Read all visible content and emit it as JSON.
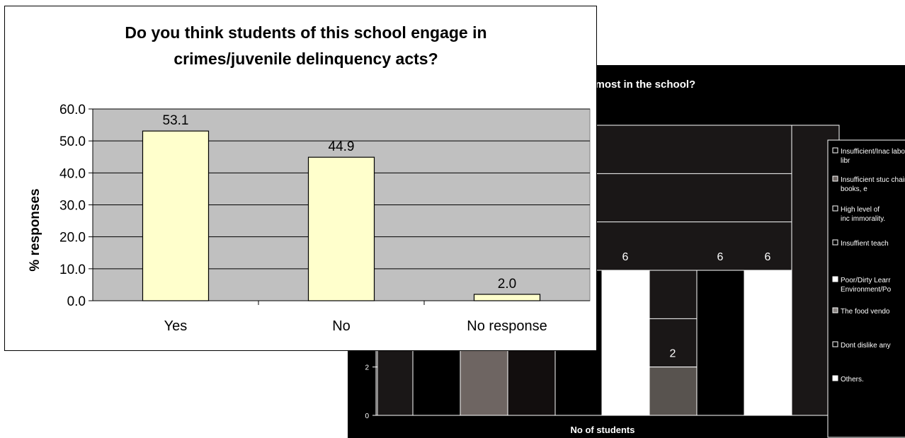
{
  "chart_data": [
    {
      "type": "bar",
      "title_line1": "Do you think students of this school engage in",
      "title_line2": "crimes/juvenile delinquency acts?",
      "xlabel": "",
      "ylabel": "% responses",
      "categories": [
        "Yes",
        "No",
        "No response"
      ],
      "values": [
        53.1,
        44.9,
        2.0
      ],
      "value_labels": [
        "53.1",
        "44.9",
        "2.0"
      ],
      "ylim": [
        0,
        60
      ],
      "yticks": [
        "0.0",
        "10.0",
        "20.0",
        "30.0",
        "40.0",
        "50.0",
        "60.0"
      ],
      "grid": true,
      "colors": {
        "bar": "#ffffcc",
        "plot_bg": "#c0c0c0",
        "bar_border": "#000000"
      }
    },
    {
      "type": "bar",
      "title_fragment": "e most in the school?",
      "xlabel": "No of students",
      "ylabel": "",
      "ylim": [
        0,
        12
      ],
      "yticks": [
        "0",
        "2"
      ],
      "grid": true,
      "series": [
        {
          "name": "Insufficient/Inac laboratories, libr",
          "value": null,
          "color": "#1a1717"
        },
        {
          "name": "Insufficient stuc chairs, books, e",
          "value": null,
          "color": "#000000"
        },
        {
          "name": "High level of inc immorality.",
          "value": null,
          "color": "#6e6562"
        },
        {
          "name": "Insuffient teach",
          "value": null,
          "color": "#120e0e"
        },
        {
          "name": "Poor/Dirty Learr Environment/Po",
          "value": 6,
          "color": "#000000"
        },
        {
          "name": "The food vendo",
          "value": 6,
          "color": "#ffffff"
        },
        {
          "name": "Dont dislike any",
          "value": 2,
          "color": "#58534f"
        },
        {
          "name": "Others.",
          "value": 6,
          "color": "#000000"
        },
        {
          "name": "",
          "value": 6,
          "color": "#ffffff"
        },
        {
          "name": "",
          "value": null,
          "color": "#1a1717"
        }
      ],
      "value_labels": [
        "6",
        "6",
        "6",
        "2"
      ],
      "legend_position": "right",
      "legend_items": [
        "Insufficient/Inac laboratories, libr",
        "Insufficient stuc chairs, books, e",
        "High level of inc immorality.",
        "Insuffient teach",
        "Poor/Dirty Learr Environment/Po",
        "The food vendo",
        "Dont dislike any",
        "Others."
      ],
      "colors": {
        "bg": "#000000",
        "text": "#ffffff"
      }
    }
  ]
}
